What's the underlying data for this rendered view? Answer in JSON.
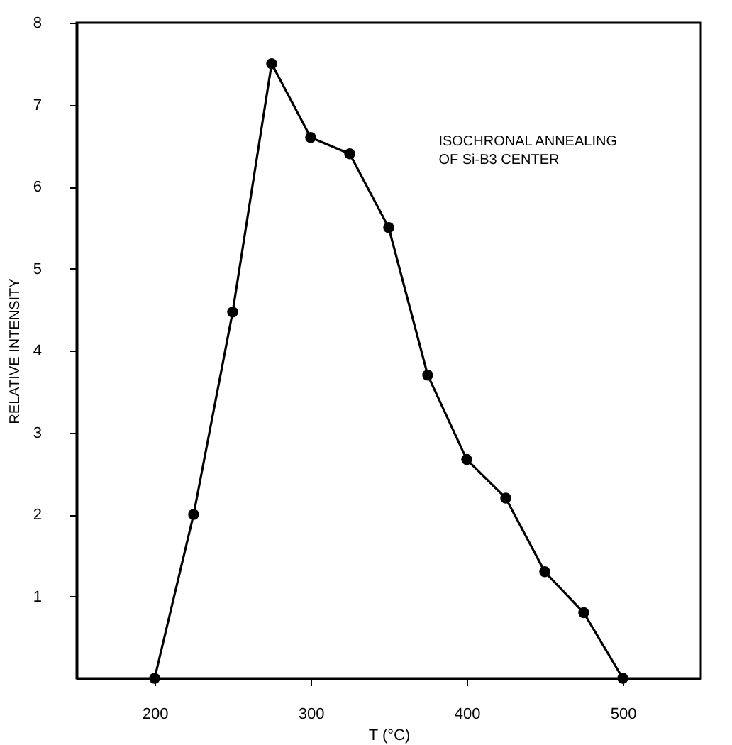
{
  "chart_data": {
    "type": "line",
    "xlabel": "T (°C)",
    "ylabel": "RELATIVE INTENSITY",
    "annotations": [
      "ISOCHRONAL ANNEALING\nOF Si-B3 CENTER"
    ],
    "x": [
      200,
      225,
      250,
      275,
      300,
      325,
      350,
      375,
      400,
      425,
      450,
      475,
      500
    ],
    "series": [
      {
        "color": "#000000",
        "values": [
          0,
          2.0,
          4.47,
          7.5,
          6.6,
          6.4,
          5.5,
          3.7,
          2.67,
          2.2,
          1.3,
          0.8,
          0
        ]
      }
    ],
    "xlim": [
      150,
      550
    ],
    "xticks": [
      200,
      300,
      400,
      500
    ],
    "ylim": [
      0,
      8
    ],
    "yticks": [
      1,
      2,
      3,
      4,
      5,
      6,
      7,
      8
    ],
    "marker": "circle",
    "line_style": "solid",
    "grid": false
  }
}
